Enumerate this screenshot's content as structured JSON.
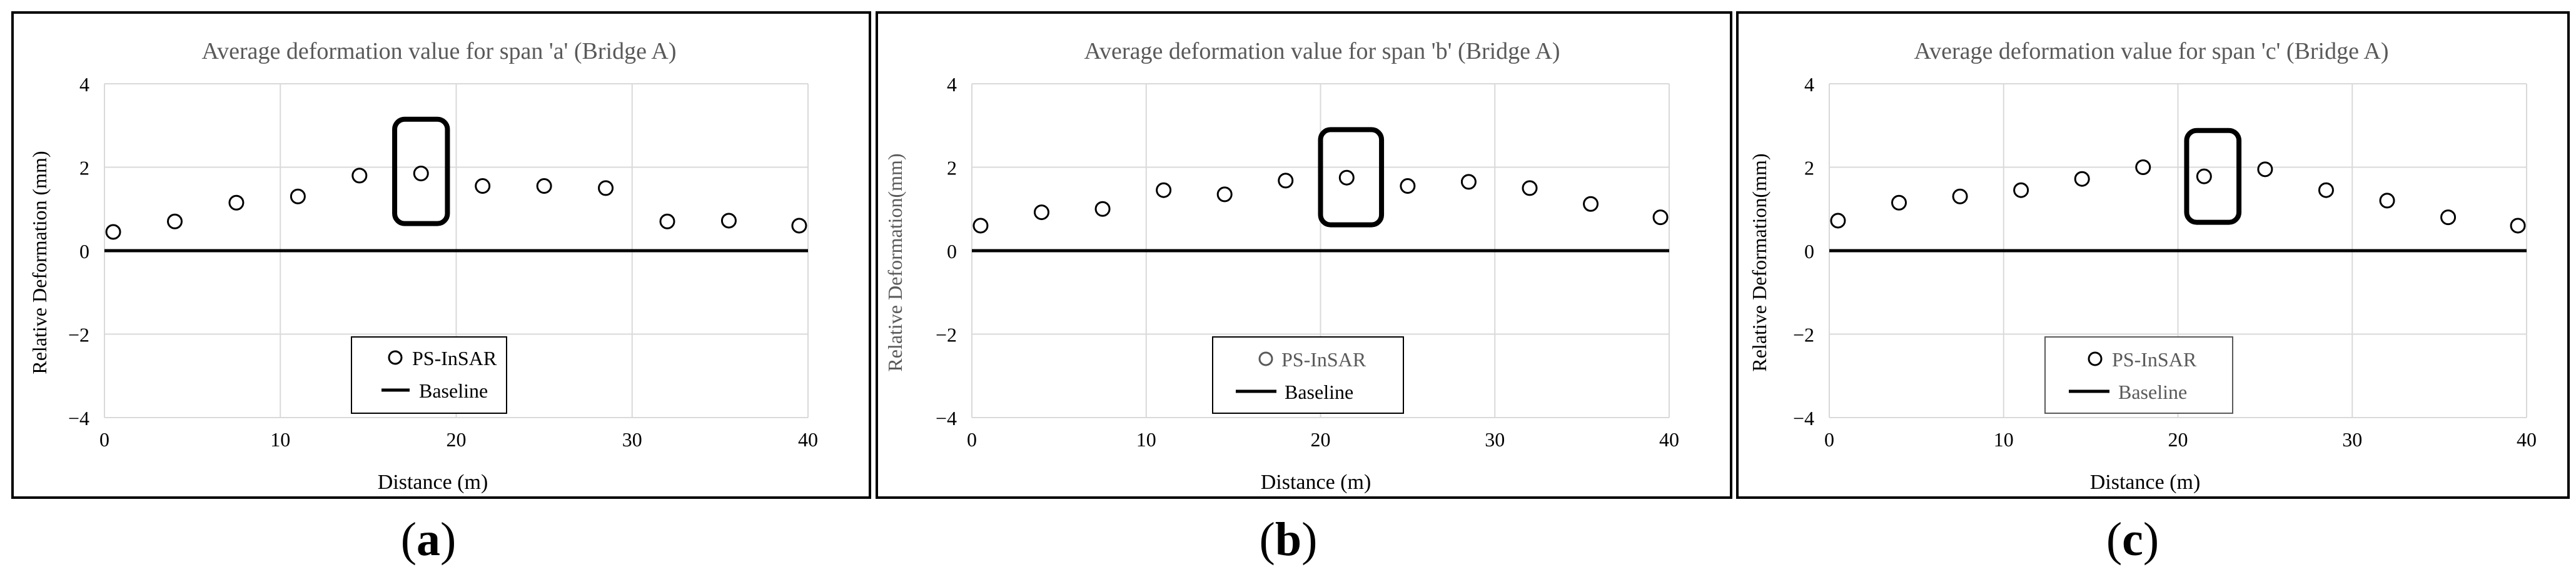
{
  "colors": {
    "frame": "#000000",
    "grid": "#d9d9d9",
    "baseline": "#000000",
    "marker_stroke": "#000000",
    "highlight": "#000000",
    "text": "#000000",
    "title": "#595959"
  },
  "chart_data": [
    {
      "type": "scatter",
      "title": "Average deformation value for span 'a' (Bridge A)",
      "xlabel": "Distance (m)",
      "ylabel": "Relative Deformation (mm)",
      "xlim": [
        0,
        40
      ],
      "ylim": [
        -4,
        4
      ],
      "xticks": [
        0,
        10,
        20,
        30,
        40
      ],
      "yticks": [
        -4,
        -2,
        0,
        2,
        4
      ],
      "xtick_labels": [
        "0",
        "10",
        "20",
        "30",
        "40"
      ],
      "ytick_labels": [
        "−4",
        "−2",
        "0",
        "2",
        "4"
      ],
      "grid": true,
      "legend_position": "bottom-center",
      "series": [
        {
          "name": "PS-InSAR",
          "kind": "markers",
          "x": [
            0.5,
            4,
            7.5,
            11,
            14.5,
            18,
            21.5,
            25,
            28.5,
            32,
            35.5,
            39.5
          ],
          "y": [
            0.45,
            0.7,
            1.15,
            1.3,
            1.8,
            1.85,
            1.55,
            1.55,
            1.5,
            0.7,
            0.72,
            0.6
          ]
        },
        {
          "name": "Baseline",
          "kind": "line",
          "x": [
            0,
            40
          ],
          "y": [
            0,
            0
          ]
        }
      ],
      "highlight": {
        "x_range": [
          16.5,
          19.5
        ],
        "y_range": [
          0.65,
          3.15
        ]
      },
      "panel_label": "a"
    },
    {
      "type": "scatter",
      "title": "Average deformation value for span 'b' (Bridge A)",
      "xlabel": "Distance (m)",
      "ylabel": "Relative Deformation(mm)",
      "xlim": [
        0,
        40
      ],
      "ylim": [
        -4,
        4
      ],
      "xticks": [
        0,
        10,
        20,
        30,
        40
      ],
      "yticks": [
        -4,
        -2,
        0,
        2,
        4
      ],
      "xtick_labels": [
        "0",
        "10",
        "20",
        "30",
        "40"
      ],
      "ytick_labels": [
        "−4",
        "−2",
        "0",
        "2",
        "4"
      ],
      "grid": true,
      "legend_position": "bottom-center",
      "series": [
        {
          "name": "PS-InSAR",
          "kind": "markers",
          "x": [
            0.5,
            4,
            7.5,
            11,
            14.5,
            18,
            21.5,
            25,
            28.5,
            32,
            35.5,
            39.5
          ],
          "y": [
            0.6,
            0.92,
            1.0,
            1.45,
            1.35,
            1.68,
            1.75,
            1.55,
            1.65,
            1.5,
            1.12,
            0.8
          ]
        },
        {
          "name": "Baseline",
          "kind": "line",
          "x": [
            0,
            40
          ],
          "y": [
            0,
            0
          ]
        }
      ],
      "highlight": {
        "x_range": [
          20,
          23.5
        ],
        "y_range": [
          0.62,
          2.9
        ]
      },
      "panel_label": "b"
    },
    {
      "type": "scatter",
      "title": "Average deformation value for span 'c' (Bridge A)",
      "xlabel": "Distance (m)",
      "ylabel": "Relative Deformation(mm)",
      "xlim": [
        0,
        40
      ],
      "ylim": [
        -4,
        4
      ],
      "xticks": [
        0,
        10,
        20,
        30,
        40
      ],
      "yticks": [
        -4,
        -2,
        0,
        2,
        4
      ],
      "xtick_labels": [
        "0",
        "10",
        "20",
        "30",
        "40"
      ],
      "ytick_labels": [
        "−4",
        "−2",
        "0",
        "2",
        "4"
      ],
      "grid": true,
      "legend_position": "bottom-center",
      "series": [
        {
          "name": "PS-InSAR",
          "kind": "markers",
          "x": [
            0.5,
            4,
            7.5,
            11,
            14.5,
            18,
            21.5,
            25,
            28.5,
            32,
            35.5,
            39.5
          ],
          "y": [
            0.72,
            1.15,
            1.3,
            1.45,
            1.72,
            2.0,
            1.78,
            1.95,
            1.45,
            1.2,
            0.8,
            0.6
          ]
        },
        {
          "name": "Baseline",
          "kind": "line",
          "x": [
            0,
            40
          ],
          "y": [
            0,
            0
          ]
        }
      ],
      "highlight": {
        "x_range": [
          20.5,
          23.5
        ],
        "y_range": [
          0.68,
          2.88
        ]
      },
      "panel_label": "c"
    }
  ]
}
